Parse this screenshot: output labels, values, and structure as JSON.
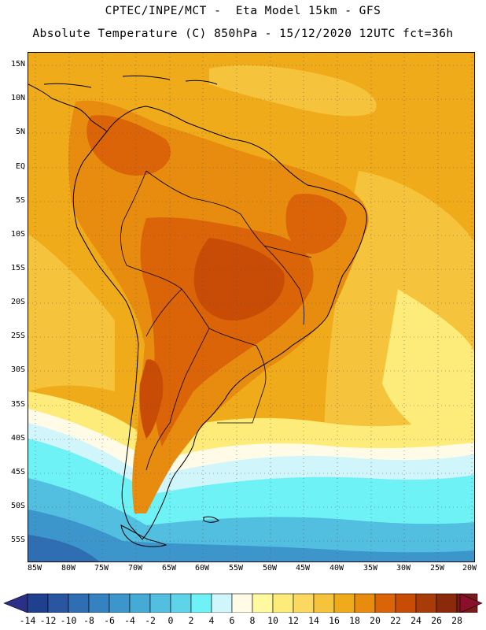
{
  "header": {
    "line1": "CPTEC/INPE/MCT -  Eta Model 15km - GFS",
    "line2": "Absolute Temperature (C) 850hPa - 15/12/2020 12UTC fct=36h"
  },
  "lat_labels": [
    "15N",
    "10N",
    "5N",
    "EQ",
    "5S",
    "10S",
    "15S",
    "20S",
    "25S",
    "30S",
    "35S",
    "40S",
    "45S",
    "50S",
    "55S"
  ],
  "lon_labels": [
    "85W",
    "80W",
    "75W",
    "70W",
    "65W",
    "60W",
    "55W",
    "50W",
    "45W",
    "40W",
    "35W",
    "30W",
    "25W",
    "20W"
  ],
  "colorbar": {
    "labels": [
      "-14",
      "-12",
      "-10",
      "-8",
      "-6",
      "-4",
      "-2",
      "0",
      "2",
      "4",
      "6",
      "8",
      "10",
      "12",
      "14",
      "16",
      "18",
      "20",
      "22",
      "24",
      "26",
      "28"
    ],
    "colors": [
      "#1f3f8f",
      "#2a55a0",
      "#2f6eb3",
      "#3582c0",
      "#3c96cb",
      "#46aad6",
      "#52bfe0",
      "#5fd3ea",
      "#6ef2f5",
      "#d0f5fb",
      "#fffbe6",
      "#fffaa0",
      "#fdeb7a",
      "#fbd860",
      "#f5c33c",
      "#f0ab1a",
      "#e88c10",
      "#dc6408",
      "#c84c06",
      "#a83c08",
      "#8a2a0a",
      "#7a1a1a"
    ],
    "low_arrow_color": "#2a2f88",
    "high_arrow_color": "#8a0f2a"
  },
  "palette": {
    "ocean_warm": "#f0ab1a",
    "ocean_mild": "#f5c33c",
    "land_warm": "#e88c10",
    "land_hot": "#dc6408",
    "land_hottest": "#c84c06",
    "south_cool": "#fdeb7a",
    "south_pale": "#fffbe6",
    "south_ice": "#d0f5fb",
    "south_cyan": "#6ef2f5",
    "south_cold": "#52bfe0",
    "south_colder": "#3c96cb",
    "south_coldest": "#2f6eb3",
    "coast": "#000000",
    "grid": "#555555"
  }
}
